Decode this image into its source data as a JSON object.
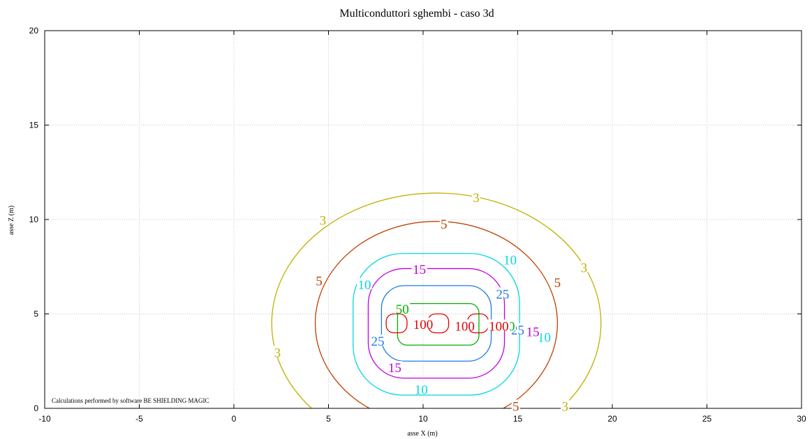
{
  "chart_data": {
    "type": "contour",
    "title": "Multiconduttori sghembi - caso 3d",
    "xlabel": "asse X (m)",
    "ylabel": "asse Z (m)",
    "credit": "Calculations performed by software BE SHIELDING MAGIC",
    "xlim": [
      -10,
      30
    ],
    "ylim": [
      0,
      20
    ],
    "xticks": [
      -10,
      -5,
      0,
      5,
      10,
      15,
      20,
      25,
      30
    ],
    "yticks": [
      0,
      5,
      10,
      15,
      20
    ],
    "grid": true,
    "conductors_x": [
      8.6,
      10.8,
      12.9
    ],
    "conductor_z": 4.5,
    "levels": [
      {
        "value": 3,
        "color": "#c0b000",
        "label": "3"
      },
      {
        "value": 5,
        "color": "#c04000",
        "label": "5"
      },
      {
        "value": 10,
        "color": "#00d8e0",
        "label": "10"
      },
      {
        "value": 15,
        "color": "#c000e0",
        "label": "15"
      },
      {
        "value": 25,
        "color": "#1e7be0",
        "label": "25"
      },
      {
        "value": 50,
        "color": "#00b000",
        "label": "50"
      },
      {
        "value": 100,
        "color": "#e00000",
        "label": "100"
      }
    ],
    "curves": [
      {
        "level": 3,
        "cx": 10.7,
        "cz": 4.5,
        "rx": 8.7,
        "rz": 6.9,
        "clip_bottom": true
      },
      {
        "level": 5,
        "cx": 10.7,
        "cz": 4.5,
        "rx": 6.4,
        "rz": 5.4,
        "clip_bottom": true
      },
      {
        "level": 10,
        "cx": 10.7,
        "cz": 4.45,
        "rx": 4.4,
        "rz": 3.75,
        "pad": 0.7
      },
      {
        "level": 15,
        "cx": 10.7,
        "cz": 4.5,
        "rx": 3.6,
        "rz": 2.9,
        "pad": 0.65
      },
      {
        "level": 25,
        "cx": 10.7,
        "cz": 4.5,
        "rx": 2.9,
        "rz": 2.0,
        "pad": 0.6
      },
      {
        "level": 50,
        "cx": 10.8,
        "cz": 4.45,
        "rx": 2.15,
        "rz": 1.1,
        "pad": 0.45
      },
      {
        "level": 100,
        "cx": 8.6,
        "cz": 4.5,
        "rx": 0.55,
        "rz": 0.5,
        "pad": 0.8
      },
      {
        "level": 100,
        "cx": 10.8,
        "cz": 4.5,
        "rx": 0.55,
        "rz": 0.5,
        "pad": 0.8
      },
      {
        "level": 100,
        "cx": 12.9,
        "cz": 4.5,
        "rx": 0.55,
        "rz": 0.5,
        "pad": 0.8
      }
    ],
    "contour_labels": [
      {
        "text": "3",
        "x": 12.8,
        "z": 11.1,
        "level": 3
      },
      {
        "text": "3",
        "x": 4.7,
        "z": 9.9,
        "level": 3
      },
      {
        "text": "3",
        "x": 18.5,
        "z": 7.4,
        "level": 3
      },
      {
        "text": "3",
        "x": 2.3,
        "z": 2.9,
        "level": 3
      },
      {
        "text": "3",
        "x": 17.5,
        "z": 0.05,
        "level": 3
      },
      {
        "text": "5",
        "x": 11.1,
        "z": 9.7,
        "level": 5
      },
      {
        "text": "5",
        "x": 4.5,
        "z": 6.7,
        "level": 5
      },
      {
        "text": "5",
        "x": 17.1,
        "z": 6.6,
        "level": 5
      },
      {
        "text": "5",
        "x": 14.9,
        "z": 0.05,
        "level": 5
      },
      {
        "text": "10",
        "x": 14.6,
        "z": 7.8,
        "level": 10
      },
      {
        "text": "10",
        "x": 6.9,
        "z": 6.5,
        "level": 10
      },
      {
        "text": "10",
        "x": 16.4,
        "z": 3.7,
        "level": 10
      },
      {
        "text": "10",
        "x": 9.9,
        "z": 0.95,
        "level": 10
      },
      {
        "text": "15",
        "x": 9.8,
        "z": 7.3,
        "level": 15
      },
      {
        "text": "15",
        "x": 15.8,
        "z": 4.0,
        "level": 15
      },
      {
        "text": "15",
        "x": 8.5,
        "z": 2.1,
        "level": 15
      },
      {
        "text": "25",
        "x": 14.2,
        "z": 6.0,
        "level": 25
      },
      {
        "text": "25",
        "x": 15.0,
        "z": 4.1,
        "level": 25
      },
      {
        "text": "25",
        "x": 7.6,
        "z": 3.5,
        "level": 25
      },
      {
        "text": "50",
        "x": 8.9,
        "z": 5.2,
        "level": 50
      },
      {
        "text": "50",
        "x": 14.5,
        "z": 4.3,
        "level": 50
      },
      {
        "text": "100",
        "x": 10.0,
        "z": 4.4,
        "level": 100
      },
      {
        "text": "100",
        "x": 12.2,
        "z": 4.3,
        "level": 100
      },
      {
        "text": "100",
        "x": 14.0,
        "z": 4.3,
        "level": 100
      }
    ]
  }
}
